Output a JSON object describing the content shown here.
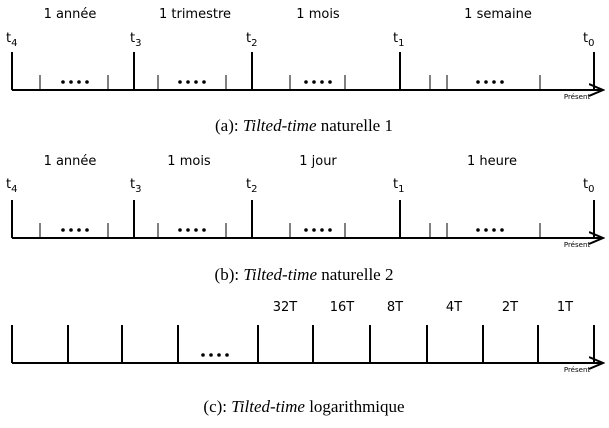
{
  "panels": [
    {
      "intervals": [
        "1 année",
        "1 trimestre",
        "1 mois",
        "1 semaine"
      ],
      "time_marks": [
        {
          "base": "t",
          "sub": "4"
        },
        {
          "base": "t",
          "sub": "3"
        },
        {
          "base": "t",
          "sub": "2"
        },
        {
          "base": "t",
          "sub": "1"
        },
        {
          "base": "t",
          "sub": "0"
        }
      ],
      "end_label": "Présent",
      "caption": {
        "prefix": "(a):",
        "emphasis": "Tilted-time",
        "rest": "naturelle 1"
      }
    },
    {
      "intervals": [
        "1 année",
        "1 mois",
        "1 jour",
        "1 heure"
      ],
      "time_marks": [
        {
          "base": "t",
          "sub": "4"
        },
        {
          "base": "t",
          "sub": "3"
        },
        {
          "base": "t",
          "sub": "2"
        },
        {
          "base": "t",
          "sub": "1"
        },
        {
          "base": "t",
          "sub": "0"
        }
      ],
      "end_label": "Présent",
      "caption": {
        "prefix": "(b):",
        "emphasis": "Tilted-time",
        "rest": "naturelle 2"
      }
    },
    {
      "intervals": [
        "32T",
        "16T",
        "8T",
        "4T",
        "2T",
        "1T"
      ],
      "end_label": "Présent",
      "caption": {
        "prefix": "(c):",
        "emphasis": "Tilted-time",
        "rest": "logarithmique"
      }
    }
  ]
}
